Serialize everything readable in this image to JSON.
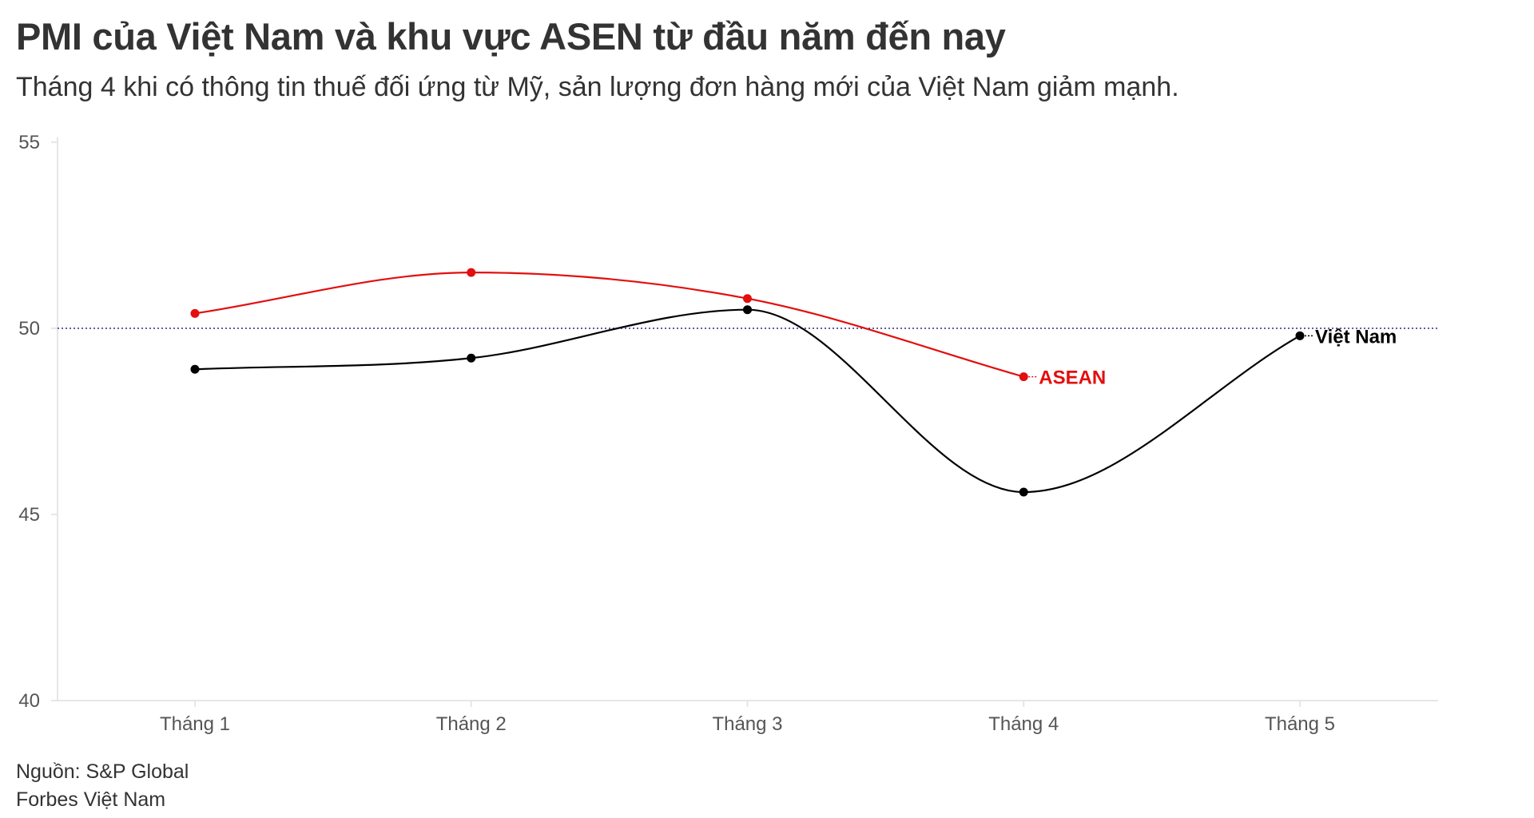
{
  "title": "PMI của Việt Nam và khu vực ASEN từ đầu năm đến nay",
  "subtitle": "Tháng 4 khi có thông tin thuế đối ứng từ Mỹ, sản lượng đơn hàng mới của Việt Nam giảm mạnh.",
  "footer": {
    "source": "Nguồn: S&P Global",
    "brand": "Forbes Việt Nam"
  },
  "colors": {
    "asean": "#e30e0e",
    "vietnam": "#000000",
    "reference": "#2b2b7a",
    "axis": "#e6e6e6",
    "tick_text": "#555555"
  },
  "chart_data": {
    "type": "line",
    "title": "PMI của Việt Nam và khu vực ASEN từ đầu năm đến nay",
    "subtitle": "Tháng 4 khi có thông tin thuế đối ứng từ Mỹ, sản lượng đơn hàng mới của Việt Nam giảm mạnh.",
    "xlabel": "",
    "ylabel": "",
    "categories": [
      "Tháng 1",
      "Tháng 2",
      "Tháng 3",
      "Tháng 4",
      "Tháng 5"
    ],
    "ylim": [
      40,
      55
    ],
    "yticks": [
      40,
      45,
      50,
      55
    ],
    "reference_line": 50,
    "grid": false,
    "series": [
      {
        "name": "ASEAN",
        "color": "#e30e0e",
        "values": [
          50.4,
          51.5,
          50.8,
          48.7,
          null
        ]
      },
      {
        "name": "Việt Nam",
        "color": "#000000",
        "values": [
          48.9,
          49.2,
          50.5,
          45.6,
          49.8
        ]
      }
    ]
  }
}
